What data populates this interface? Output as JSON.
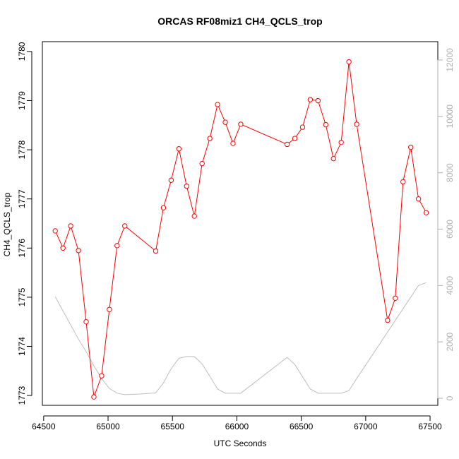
{
  "chart_data": {
    "type": "line",
    "title": "ORCAS RF08miz1 CH4_QCLS_trop",
    "xlabel": "UTC Seconds",
    "ylabel": "CH4_QCLS_trop",
    "xlim": [
      64490,
      67560
    ],
    "ylim": [
      1772.8,
      1780.2
    ],
    "y2lim": [
      -250,
      12650
    ],
    "x_ticks": [
      64500,
      65000,
      65500,
      66000,
      66500,
      67000,
      67500
    ],
    "y_ticks": [
      1773,
      1774,
      1775,
      1776,
      1777,
      1778,
      1779,
      1780
    ],
    "y2_ticks": [
      0,
      2000,
      4000,
      6000,
      8000,
      10000,
      12000
    ],
    "grid": false,
    "colors": {
      "series_red": "#ff0000",
      "series_gray": "#bebebe",
      "axis": "#000000",
      "right_axis": "#b0b0b0"
    },
    "series": [
      {
        "axis": "left",
        "marker": "open-circle",
        "x": [
          64590,
          64650,
          64710,
          64770,
          64830,
          64890,
          64950,
          65010,
          65070,
          65130,
          65370,
          65430,
          65490,
          65550,
          65610,
          65670,
          65730,
          65790,
          65850,
          65910,
          65970,
          66030,
          66390,
          66450,
          66510,
          66570,
          66630,
          66690,
          66750,
          66810,
          66870,
          66930,
          67170,
          67230,
          67290,
          67350,
          67410,
          67470
        ],
        "values": [
          1776.35,
          1776.0,
          1776.45,
          1775.95,
          1774.5,
          1772.97,
          1773.4,
          1774.75,
          1776.05,
          1776.45,
          1775.94,
          1776.82,
          1777.38,
          1778.02,
          1777.26,
          1776.65,
          1777.72,
          1778.23,
          1778.92,
          1778.56,
          1778.13,
          1778.52,
          1778.11,
          1778.23,
          1778.46,
          1779.02,
          1779.0,
          1778.51,
          1777.82,
          1778.15,
          1779.79,
          1778.52,
          1774.53,
          1774.98,
          1777.35,
          1778.05,
          1777.0,
          1776.72
        ]
      },
      {
        "axis": "right",
        "marker": "none",
        "x": [
          64590,
          64650,
          64710,
          64770,
          64830,
          64890,
          64950,
          65010,
          65070,
          65130,
          65250,
          65370,
          65430,
          65490,
          65550,
          65610,
          65670,
          65730,
          65790,
          65850,
          65910,
          66030,
          66390,
          66450,
          66510,
          66570,
          66630,
          66690,
          66810,
          66870,
          66930,
          67170,
          67410,
          67470
        ],
        "values": [
          3600,
          3100,
          2600,
          2100,
          1650,
          1150,
          700,
          350,
          180,
          130,
          150,
          190,
          550,
          1050,
          1420,
          1480,
          1480,
          1220,
          780,
          330,
          180,
          180,
          1450,
          1200,
          760,
          330,
          180,
          180,
          180,
          270,
          700,
          2350,
          4000,
          4100
        ]
      }
    ]
  }
}
